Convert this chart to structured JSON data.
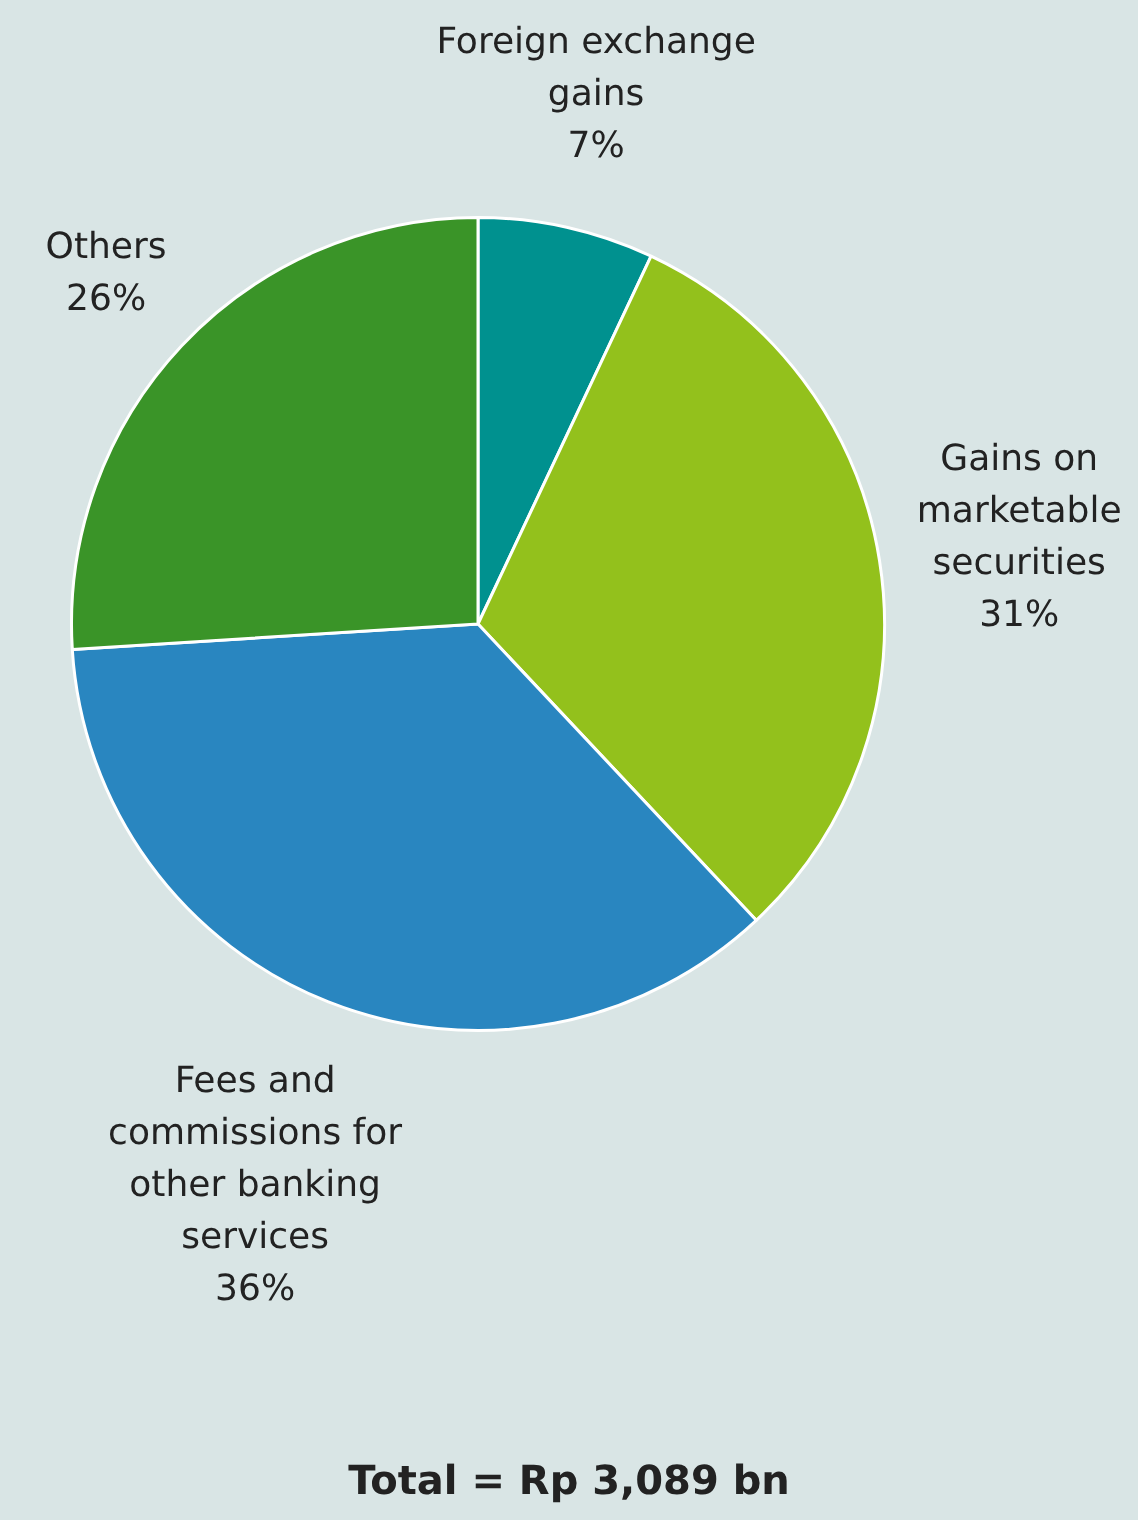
{
  "chart_data": {
    "type": "pie",
    "categories": [
      "Foreign exchange gains",
      "Gains on marketable securities",
      "Fees and commissions for other banking services",
      "Others"
    ],
    "values": [
      7,
      31,
      36,
      26
    ],
    "colors": [
      "#00918f",
      "#93c11c",
      "#2986c0",
      "#3a9428"
    ],
    "value_labels": [
      "7%",
      "31%",
      "36%",
      "26%"
    ],
    "legend": false,
    "annotations": [
      "Total = Rp 3,089 bn"
    ]
  }
}
